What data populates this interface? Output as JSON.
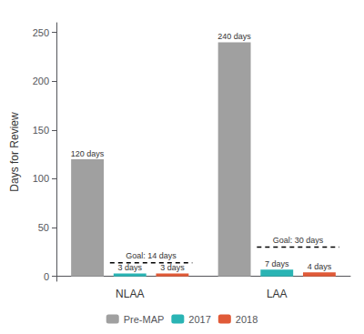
{
  "chart_data": {
    "type": "bar",
    "categories": [
      "NLAA",
      "LAA"
    ],
    "series": [
      {
        "name": "Pre-MAP",
        "color": "#a0a0a0",
        "values": [
          120,
          240
        ],
        "value_labels": [
          "120 days",
          "240 days"
        ]
      },
      {
        "name": "2017",
        "color": "#2ab4b4",
        "values": [
          3,
          7
        ],
        "value_labels": [
          "3 days",
          "7 days"
        ]
      },
      {
        "name": "2018",
        "color": "#e05a38",
        "values": [
          3,
          4
        ],
        "value_labels": [
          "3 days",
          "4 days"
        ]
      }
    ],
    "ylabel": "Days for Review",
    "ylim": [
      -5,
      260
    ],
    "yticks": [
      0,
      50,
      100,
      150,
      200,
      250
    ],
    "grid": false,
    "legend": "bottom",
    "data_labels": true,
    "goal_lines": [
      {
        "category": "NLAA",
        "value": 14,
        "label": "Goal: 14 days"
      },
      {
        "category": "LAA",
        "value": 30,
        "label": "Goal: 30 days"
      }
    ]
  }
}
